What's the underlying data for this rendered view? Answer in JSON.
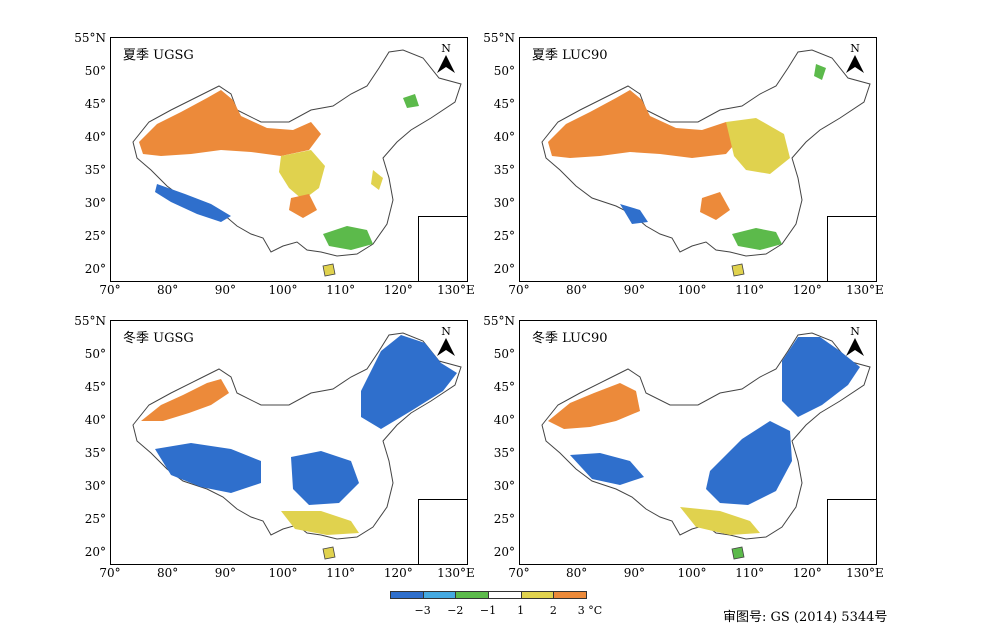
{
  "panels": [
    {
      "title": "夏季 UGSG",
      "season": "summer"
    },
    {
      "title": "夏季 LUC90",
      "season": "summer"
    },
    {
      "title": "冬季 UGSG",
      "season": "winter"
    },
    {
      "title": "冬季 LUC90",
      "season": "winter"
    }
  ],
  "north_label": "N",
  "lat_labels": [
    "55°N",
    "50°",
    "45°",
    "40°",
    "35°",
    "30°",
    "25°",
    "20°"
  ],
  "lon_labels": [
    "70°",
    "80°",
    "90°",
    "100°",
    "110°",
    "120°",
    "130°E"
  ],
  "legend": {
    "labels": [
      "−3",
      "−2",
      "−1",
      "1",
      "2",
      "3 °C"
    ],
    "colors": [
      "#2f6fcc",
      "#45a9e0",
      "#5cba4b",
      "#ffffff",
      "#e0d24e",
      "#ec8a3a"
    ]
  },
  "approval_number": "审图号: GS (2014) 5344号",
  "colors": {
    "orange": "#ec8a3a",
    "yellow": "#e0d24e",
    "green": "#5cba4b",
    "lightblue": "#45a9e0",
    "blue": "#2f6fcc"
  }
}
